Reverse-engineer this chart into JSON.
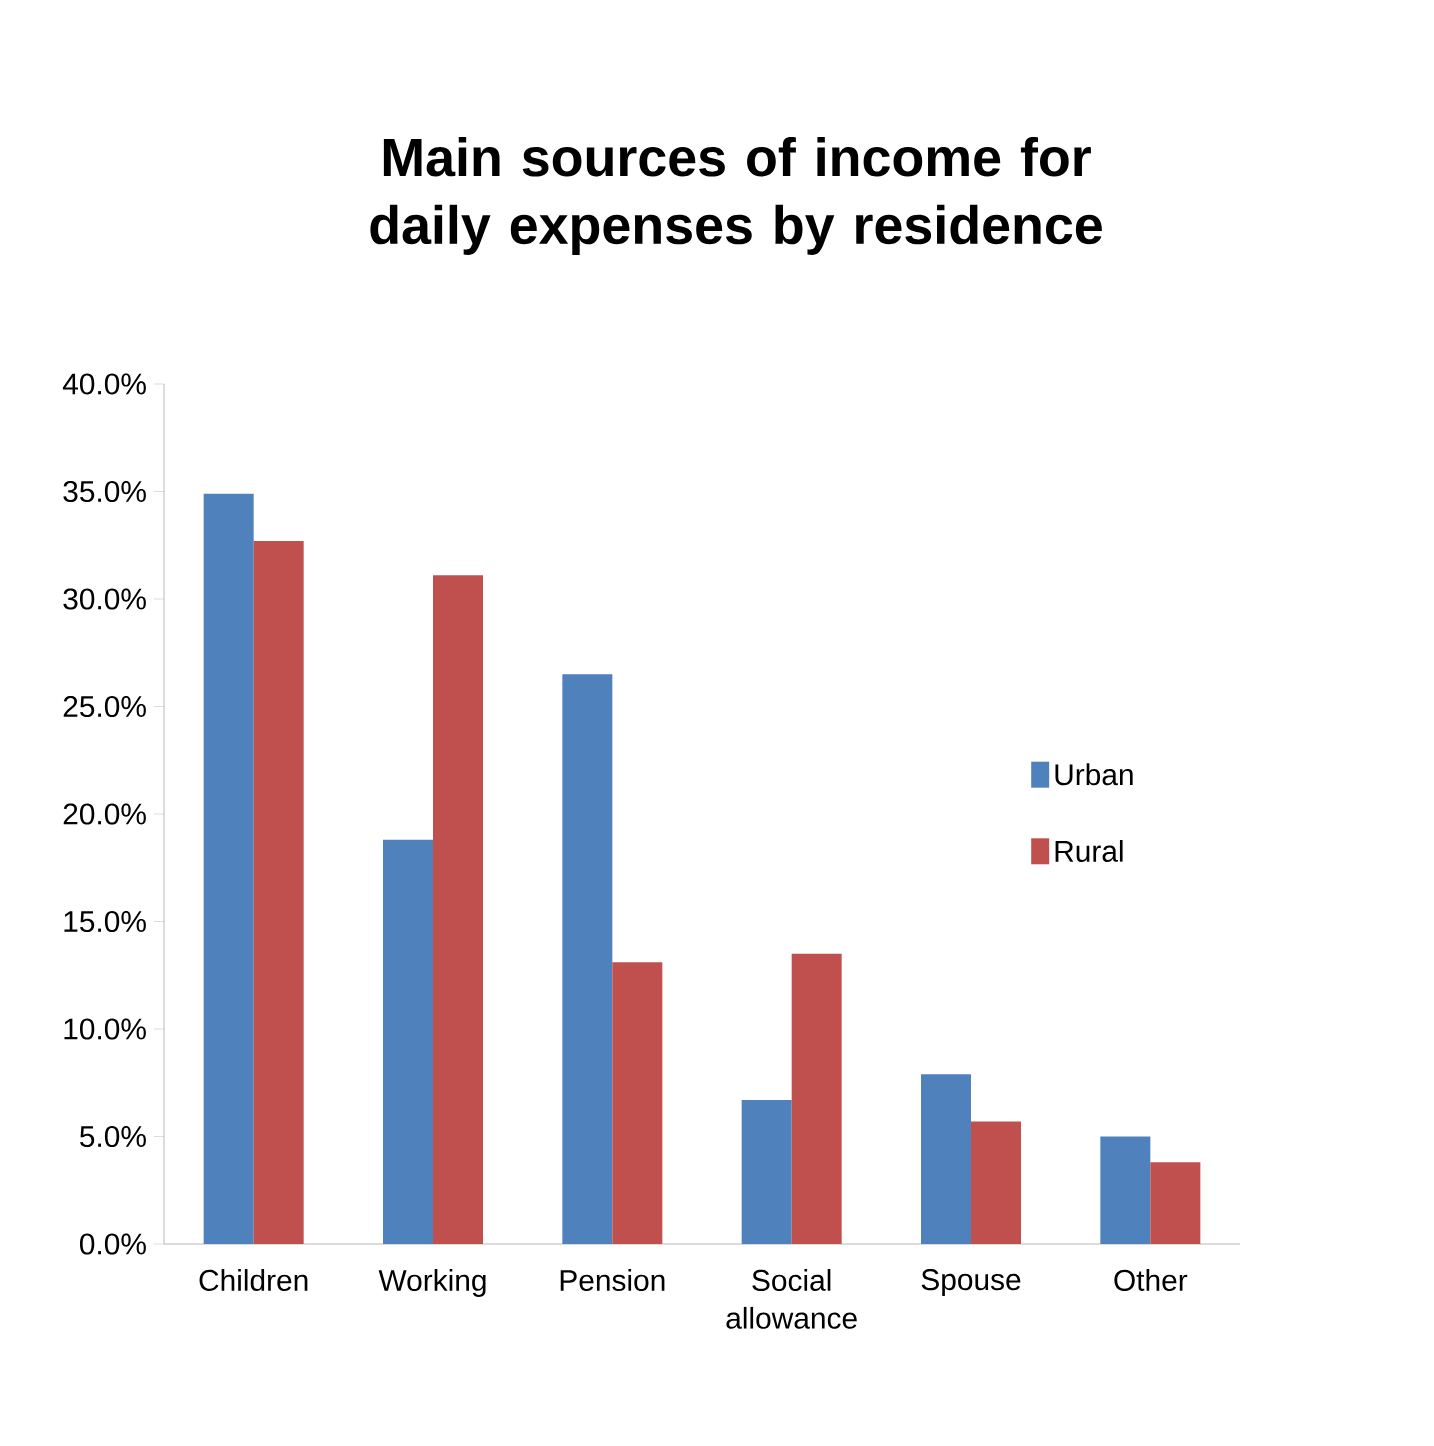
{
  "chart_data": {
    "type": "bar",
    "title": "Main sources of income for daily expenses by residence",
    "categories": [
      "Children",
      "Working",
      "Pension",
      "Social allowance",
      "Spouse",
      "Other"
    ],
    "series": [
      {
        "name": "Urban",
        "color": "#4f81bd",
        "values": [
          34.9,
          18.8,
          26.5,
          6.7,
          7.9,
          5.0
        ]
      },
      {
        "name": "Rural",
        "color": "#c0504d",
        "values": [
          32.7,
          31.1,
          13.1,
          13.5,
          5.7,
          3.8
        ]
      }
    ],
    "ylim": [
      0,
      40
    ],
    "yticks": [
      {
        "value": 0,
        "label": "0.0%"
      },
      {
        "value": 5,
        "label": "5.0%"
      },
      {
        "value": 10,
        "label": "10.0%"
      },
      {
        "value": 15,
        "label": "15.0%"
      },
      {
        "value": 20,
        "label": "20.0%"
      },
      {
        "value": 25,
        "label": "25.0%"
      },
      {
        "value": 30,
        "label": "30.0%"
      },
      {
        "value": 35,
        "label": "35.0%"
      },
      {
        "value": 40,
        "label": "40.0%"
      }
    ],
    "grid": false,
    "legend": "right"
  }
}
